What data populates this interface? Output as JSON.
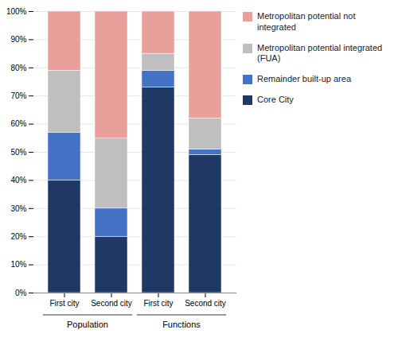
{
  "chart_data": {
    "type": "bar",
    "stacked": true,
    "categories": [
      "First city",
      "Second city",
      "First city",
      "Second city"
    ],
    "annotations": [
      "Population",
      "Functions"
    ],
    "series": [
      {
        "name": "Core City",
        "color": "#1F3864",
        "values": [
          40,
          20,
          73,
          49
        ]
      },
      {
        "name": "Remainder built-up area",
        "color": "#4472C4",
        "values": [
          17,
          10,
          6,
          2
        ]
      },
      {
        "name": "Metropolitan potential integrated (FUA)",
        "color": "#BFBFBF",
        "values": [
          22,
          25,
          6,
          11
        ]
      },
      {
        "name": "Metropolitan potential not integrated",
        "color": "#E8A09A",
        "values": [
          21,
          45,
          15,
          38
        ]
      }
    ],
    "ylim": [
      0,
      100
    ],
    "yticks": [
      {
        "value": 0,
        "label": "0%"
      },
      {
        "value": 10,
        "label": "10%"
      },
      {
        "value": 20,
        "label": "20%"
      },
      {
        "value": 30,
        "label": "30%"
      },
      {
        "value": 40,
        "label": "40%"
      },
      {
        "value": 50,
        "label": "50%"
      },
      {
        "value": 60,
        "label": "60%"
      },
      {
        "value": 70,
        "label": "70%"
      },
      {
        "value": 80,
        "label": "80%"
      },
      {
        "value": 90,
        "label": "90%"
      },
      {
        "value": 100,
        "label": "100%"
      }
    ],
    "grid": true,
    "legend": "right"
  }
}
